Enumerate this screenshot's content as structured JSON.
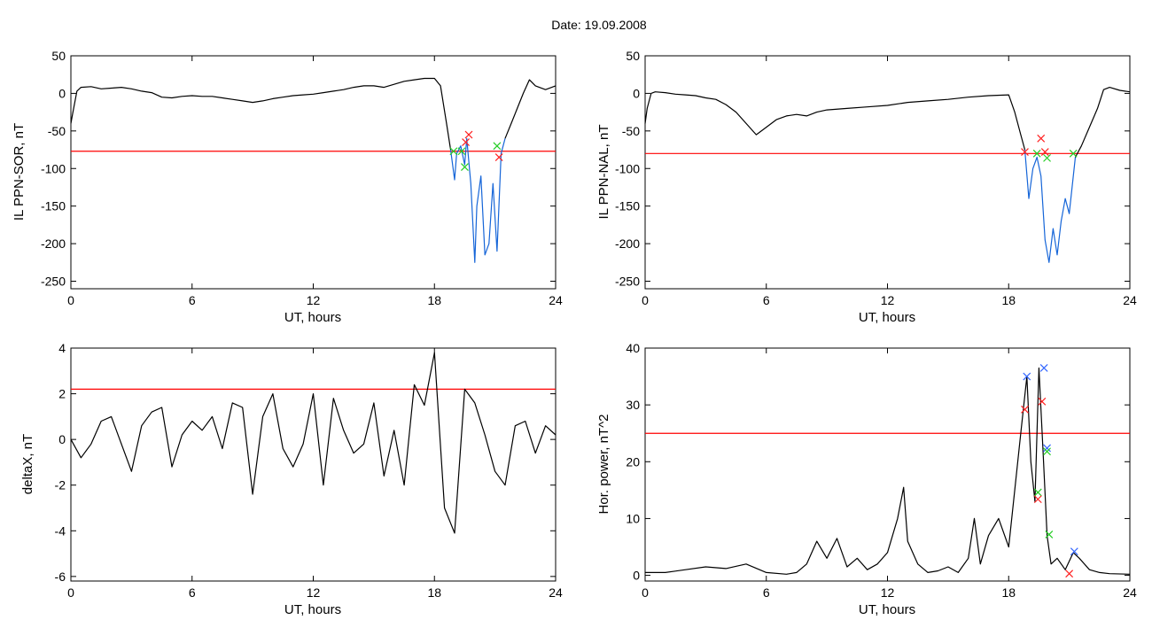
{
  "page": {
    "title": "Date:  19.09.2008"
  },
  "colors": {
    "trace": "#000000",
    "active": "#1565d8",
    "threshold": "#ff0000",
    "marker_green": "#22cc22",
    "marker_red": "#ff2020",
    "marker_blue": "#3366ff"
  },
  "chart_data": [
    {
      "type": "line",
      "ylabel": "IL PPN-SOR, nT",
      "xlabel": "UT, hours",
      "xlim": [
        0,
        24
      ],
      "ylim": [
        -260,
        50
      ],
      "xticks": [
        0,
        6,
        12,
        18,
        24
      ],
      "yticks": [
        50,
        0,
        -50,
        -100,
        -150,
        -200,
        -250
      ],
      "grid": false,
      "threshold": -77,
      "series": [
        {
          "values_x": [
            0,
            0.1,
            0.3,
            0.5,
            1,
            1.5,
            2,
            2.5,
            3,
            3.5,
            4,
            4.5,
            5,
            5.5,
            6,
            6.5,
            7,
            7.5,
            8,
            8.5,
            9,
            9.5,
            10,
            10.5,
            11,
            11.5,
            12,
            12.5,
            13,
            13.5,
            14,
            14.5,
            15,
            15.5,
            16,
            16.5,
            17,
            17.5,
            18,
            18.3,
            18.6,
            18.8
          ],
          "values_y": [
            -40,
            -25,
            3,
            8,
            9,
            6,
            7,
            8,
            6,
            3,
            1,
            -5,
            -6,
            -4,
            -3,
            -4,
            -4,
            -6,
            -8,
            -10,
            -12,
            -10,
            -7,
            -5,
            -3,
            -2,
            -1,
            1,
            3,
            5,
            8,
            10,
            10,
            8,
            12,
            16,
            18,
            20,
            20,
            10,
            -40,
            -75
          ]
        },
        {
          "color": "blue",
          "values_x": [
            18.8,
            19.0,
            19.1,
            19.3,
            19.5,
            19.6,
            19.8,
            20.0,
            20.1,
            20.3,
            20.5,
            20.7,
            20.9,
            21.1,
            21.3,
            21.5
          ],
          "values_y": [
            -75,
            -115,
            -80,
            -70,
            -95,
            -60,
            -120,
            -225,
            -150,
            -110,
            -215,
            -200,
            -120,
            -210,
            -80,
            -60
          ]
        },
        {
          "values_x": [
            21.5,
            21.8,
            22.1,
            22.4,
            22.7,
            23.0,
            23.5,
            24
          ],
          "values_y": [
            -60,
            -40,
            -20,
            0,
            18,
            10,
            5,
            10
          ]
        }
      ],
      "markers": [
        {
          "x": 18.95,
          "y": -77,
          "color": "green"
        },
        {
          "x": 19.35,
          "y": -77,
          "color": "green"
        },
        {
          "x": 19.5,
          "y": -98,
          "color": "green"
        },
        {
          "x": 19.55,
          "y": -65,
          "color": "red"
        },
        {
          "x": 19.7,
          "y": -55,
          "color": "red"
        },
        {
          "x": 21.1,
          "y": -70,
          "color": "green"
        },
        {
          "x": 21.2,
          "y": -85,
          "color": "red"
        }
      ]
    },
    {
      "type": "line",
      "ylabel": "IL PPN-NAL, nT",
      "xlabel": "UT, hours",
      "xlim": [
        0,
        24
      ],
      "ylim": [
        -260,
        50
      ],
      "xticks": [
        0,
        6,
        12,
        18,
        24
      ],
      "yticks": [
        50,
        0,
        -50,
        -100,
        -150,
        -200,
        -250
      ],
      "grid": false,
      "threshold": -80,
      "series": [
        {
          "values_x": [
            0,
            0.1,
            0.3,
            0.5,
            1,
            1.5,
            2,
            2.5,
            3,
            3.5,
            4,
            4.5,
            5,
            5.5,
            6,
            6.5,
            7,
            7.5,
            8,
            8.5,
            9,
            10,
            11,
            12,
            13,
            14,
            15,
            16,
            17,
            18,
            18.3,
            18.6,
            18.8
          ],
          "values_y": [
            -40,
            -20,
            0,
            2,
            1,
            -1,
            -2,
            -3,
            -6,
            -8,
            -15,
            -25,
            -40,
            -55,
            -45,
            -35,
            -30,
            -28,
            -30,
            -25,
            -22,
            -20,
            -18,
            -16,
            -12,
            -10,
            -8,
            -5,
            -3,
            -2,
            -25,
            -55,
            -75
          ]
        },
        {
          "color": "blue",
          "values_x": [
            18.8,
            19.0,
            19.2,
            19.4,
            19.6,
            19.8,
            20.0,
            20.2,
            20.4,
            20.6,
            20.8,
            21.0,
            21.3
          ],
          "values_y": [
            -75,
            -140,
            -100,
            -85,
            -110,
            -195,
            -225,
            -180,
            -215,
            -170,
            -140,
            -160,
            -85
          ]
        },
        {
          "values_x": [
            21.3,
            21.6,
            22,
            22.4,
            22.7,
            23.0,
            23.5,
            24
          ],
          "values_y": [
            -85,
            -70,
            -45,
            -20,
            5,
            8,
            4,
            2
          ]
        }
      ],
      "markers": [
        {
          "x": 18.8,
          "y": -78,
          "color": "red"
        },
        {
          "x": 19.4,
          "y": -80,
          "color": "green"
        },
        {
          "x": 19.6,
          "y": -60,
          "color": "red"
        },
        {
          "x": 19.8,
          "y": -78,
          "color": "red"
        },
        {
          "x": 19.9,
          "y": -86,
          "color": "green"
        },
        {
          "x": 21.2,
          "y": -80,
          "color": "green"
        }
      ]
    },
    {
      "type": "line",
      "ylabel": "deltaX, nT",
      "xlabel": "UT, hours",
      "xlim": [
        0,
        24
      ],
      "ylim": [
        -6.2,
        4.0
      ],
      "xticks": [
        0,
        6,
        12,
        18,
        24
      ],
      "yticks": [
        4,
        2,
        0,
        -2,
        -4,
        -6
      ],
      "grid": false,
      "threshold": 2.2,
      "series": [
        {
          "values_x": [
            0,
            0.5,
            1,
            1.5,
            2,
            2.5,
            3,
            3.5,
            4,
            4.5,
            5,
            5.5,
            6,
            6.5,
            7,
            7.5,
            8,
            8.5,
            9,
            9.5,
            10,
            10.5,
            11,
            11.5,
            12,
            12.5,
            13,
            13.5,
            14,
            14.5,
            15,
            15.5,
            16,
            16.5,
            17,
            17.5,
            18,
            18.5,
            19,
            19.5,
            20,
            20.5,
            21,
            21.5,
            22,
            22.5,
            23,
            23.5,
            24
          ],
          "values_y": [
            0,
            -0.8,
            -0.2,
            0.8,
            1.0,
            -0.2,
            -1.4,
            0.6,
            1.2,
            1.4,
            -1.2,
            0.2,
            0.8,
            0.4,
            1.0,
            -0.4,
            1.6,
            1.4,
            -2.4,
            1.0,
            2.0,
            -0.4,
            -1.2,
            -0.2,
            2.0,
            -2.0,
            1.8,
            0.4,
            -0.6,
            -0.2,
            1.6,
            -1.6,
            0.4,
            -2.0,
            2.4,
            1.5,
            3.8,
            -3.0,
            -4.1,
            2.2,
            1.6,
            0.2,
            -1.4,
            -2.0,
            0.6,
            0.8,
            -0.6,
            0.6,
            0.2
          ]
        }
      ]
    },
    {
      "type": "line",
      "ylabel": "Hor. power, nT^2",
      "xlabel": "UT, hours",
      "xlim": [
        0,
        24
      ],
      "ylim": [
        -1,
        40
      ],
      "xticks": [
        0,
        6,
        12,
        18,
        24
      ],
      "yticks": [
        40,
        30,
        20,
        10,
        0
      ],
      "grid": false,
      "threshold": 25,
      "series": [
        {
          "values_x": [
            0,
            1,
            2,
            3,
            4,
            5,
            6,
            7,
            7.5,
            8,
            8.5,
            9,
            9.5,
            10,
            10.5,
            11,
            11.5,
            12,
            12.5,
            12.8,
            13,
            13.5,
            14,
            14.5,
            15,
            15.5,
            16,
            16.3,
            16.6,
            17,
            17.5,
            18,
            18.3,
            18.6,
            18.9,
            19.1,
            19.3,
            19.5,
            19.7,
            19.9,
            20.1,
            20.4,
            20.8,
            21.2,
            21.5,
            22,
            22.5,
            23,
            24
          ],
          "values_y": [
            0.5,
            0.5,
            1.0,
            1.5,
            1.2,
            2.0,
            0.5,
            0.2,
            0.5,
            2.0,
            6.0,
            3.0,
            6.5,
            1.5,
            3.0,
            1.0,
            2.0,
            4.0,
            10.0,
            15.5,
            6.0,
            2.0,
            0.5,
            0.8,
            1.5,
            0.5,
            3.0,
            10.0,
            2.0,
            7.0,
            10.0,
            5.0,
            15.0,
            25.0,
            35.0,
            20.0,
            13.0,
            36.5,
            22.0,
            7.0,
            2.0,
            3.0,
            1.0,
            4.0,
            3.0,
            1.0,
            0.5,
            0.3,
            0.2
          ]
        }
      ],
      "markers": [
        {
          "x": 18.9,
          "y": 35.0,
          "color": "blue"
        },
        {
          "x": 19.75,
          "y": 36.5,
          "color": "blue"
        },
        {
          "x": 18.8,
          "y": 29.2,
          "color": "red"
        },
        {
          "x": 19.65,
          "y": 30.6,
          "color": "red"
        },
        {
          "x": 19.9,
          "y": 22.4,
          "color": "blue"
        },
        {
          "x": 19.9,
          "y": 21.8,
          "color": "green"
        },
        {
          "x": 19.45,
          "y": 14.6,
          "color": "green"
        },
        {
          "x": 19.45,
          "y": 13.4,
          "color": "red"
        },
        {
          "x": 20.0,
          "y": 7.2,
          "color": "green"
        },
        {
          "x": 21.25,
          "y": 4.2,
          "color": "blue"
        },
        {
          "x": 21.0,
          "y": 0.3,
          "color": "red"
        }
      ]
    }
  ]
}
